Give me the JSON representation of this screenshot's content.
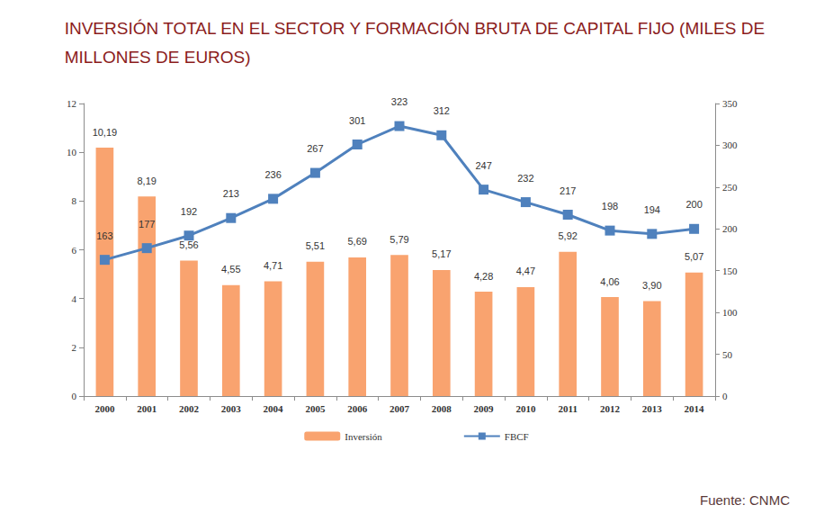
{
  "chart_data": {
    "type": "bar",
    "title": "INVERSIÓN TOTAL EN EL SECTOR Y FORMACIÓN BRUTA DE CAPITAL FIJO (MILES DE\nMILLONES DE EUROS)",
    "source": "Fuente: CNMC",
    "categories": [
      "2000",
      "2001",
      "2002",
      "2003",
      "2004",
      "2005",
      "2006",
      "2007",
      "2008",
      "2009",
      "2010",
      "2011",
      "2012",
      "2013",
      "2014"
    ],
    "series": [
      {
        "name": "Inversión",
        "type": "bar",
        "color": "#F9A36F",
        "values": [
          10.19,
          8.19,
          5.56,
          4.55,
          4.71,
          5.51,
          5.69,
          5.79,
          5.17,
          4.28,
          4.47,
          5.92,
          4.06,
          3.9,
          5.07
        ],
        "value_labels": [
          "10,19",
          "8,19",
          "5,56",
          "4,55",
          "4,71",
          "5,51",
          "5,69",
          "5,79",
          "5,17",
          "4,28",
          "4,47",
          "5,92",
          "4,06",
          "3,90",
          "5,07"
        ]
      },
      {
        "name": "FBCF",
        "type": "line",
        "axis": "y2",
        "color": "#4F81BD",
        "marker": "square",
        "values": [
          163,
          177,
          192,
          213,
          236,
          267,
          301,
          323,
          312,
          247,
          232,
          217,
          198,
          194,
          200
        ]
      }
    ],
    "ylim": [
      0,
      12
    ],
    "yticks": [
      0,
      2,
      4,
      6,
      8,
      10,
      12
    ],
    "y2lim": [
      0,
      350
    ],
    "y2ticks": [
      0,
      50,
      100,
      150,
      200,
      250,
      300,
      350
    ],
    "data_labels": true,
    "grid": false,
    "legend": "bottom"
  }
}
